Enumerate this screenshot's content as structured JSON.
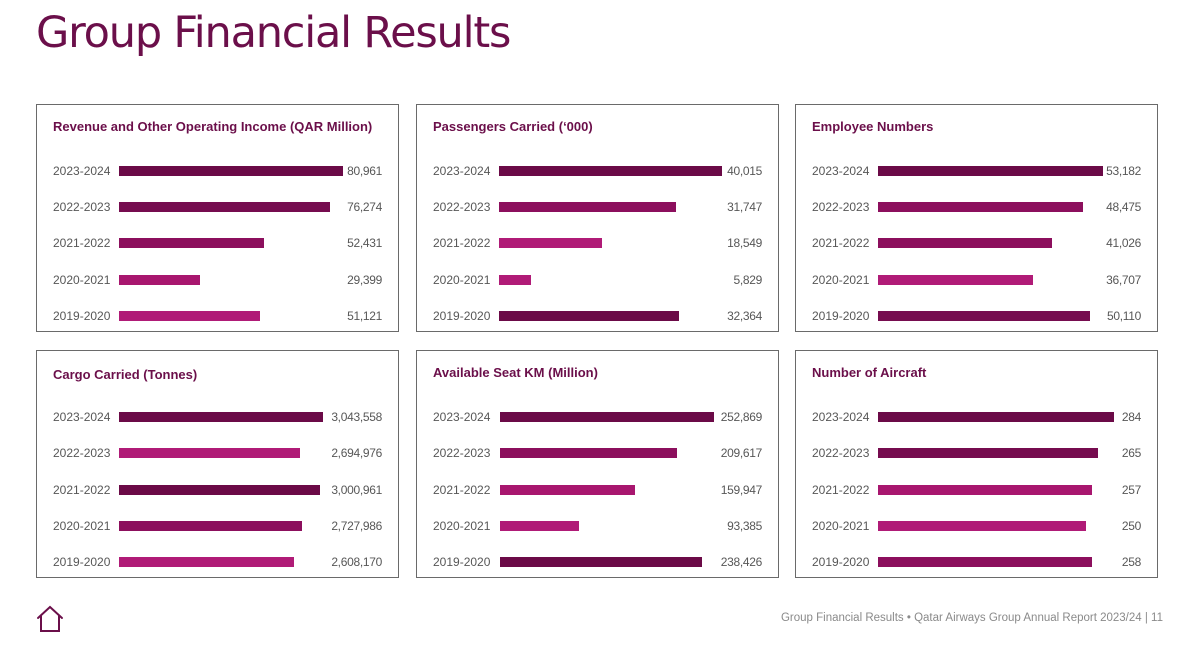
{
  "page_title": "Group Financial Results",
  "footer": {
    "text": "Group Financial Results • Qatar Airways Group Annual Report 2023/24 | 11"
  },
  "colors": {
    "dark": "#6b0a47",
    "mid": "#8c0f5d",
    "light": "#b01b77",
    "title": "#6b0f4a",
    "border": "#6a6a6a"
  },
  "chart_data": [
    {
      "type": "bar",
      "title": "Revenue and Other Operating Income (QAR Million)",
      "categories": [
        "2023-2024",
        "2022-2023",
        "2021-2022",
        "2020-2021",
        "2019-2020"
      ],
      "values": [
        80961,
        76274,
        52431,
        29399,
        51121
      ],
      "value_labels": [
        "80,961",
        "76,274",
        "52,431",
        "29,399",
        "51,121"
      ],
      "bar_colors": [
        "#6b0a47",
        "#760c4f",
        "#8c0f5d",
        "#a8166f",
        "#b01b77"
      ]
    },
    {
      "type": "bar",
      "title": "Passengers Carried (‘000)",
      "categories": [
        "2023-2024",
        "2022-2023",
        "2021-2022",
        "2020-2021",
        "2019-2020"
      ],
      "values": [
        40015,
        31747,
        18549,
        5829,
        32364
      ],
      "value_labels": [
        "40,015",
        "31,747",
        "18,549",
        "5,829",
        "32,364"
      ],
      "bar_colors": [
        "#6b0a47",
        "#8c0f5d",
        "#b01b77",
        "#b01b77",
        "#6b0a47"
      ]
    },
    {
      "type": "bar",
      "title": "Employee Numbers",
      "categories": [
        "2023-2024",
        "2022-2023",
        "2021-2022",
        "2020-2021",
        "2019-2020"
      ],
      "values": [
        53182,
        48475,
        41026,
        36707,
        50110
      ],
      "value_labels": [
        "53,182",
        "48,475",
        "41,026",
        "36,707",
        "50,110"
      ],
      "bar_colors": [
        "#6b0a47",
        "#8c0f5d",
        "#8c0f5d",
        "#b01b77",
        "#760c4f"
      ]
    },
    {
      "type": "bar",
      "title": "Cargo Carried (Tonnes)",
      "categories": [
        "2023-2024",
        "2022-2023",
        "2021-2022",
        "2020-2021",
        "2019-2020"
      ],
      "values": [
        3043558,
        2694976,
        3000961,
        2727986,
        2608170
      ],
      "value_labels": [
        "3,043,558",
        "2,694,976",
        "3,000,961",
        "2,727,986",
        "2,608,170"
      ],
      "bar_colors": [
        "#6b0a47",
        "#b01b77",
        "#6b0a47",
        "#8c0f5d",
        "#b01b77"
      ]
    },
    {
      "type": "bar",
      "title": "Available Seat KM (Million)",
      "categories": [
        "2023-2024",
        "2022-2023",
        "2021-2022",
        "2020-2021",
        "2019-2020"
      ],
      "values": [
        252869,
        209617,
        159947,
        93385,
        238426
      ],
      "value_labels": [
        "252,869",
        "209,617",
        "159,947",
        "93,385",
        "238,426"
      ],
      "bar_colors": [
        "#6b0a47",
        "#8c0f5d",
        "#a8166f",
        "#b01b77",
        "#6b0a47"
      ]
    },
    {
      "type": "bar",
      "title": "Number of Aircraft",
      "categories": [
        "2023-2024",
        "2022-2023",
        "2021-2022",
        "2020-2021",
        "2019-2020"
      ],
      "values": [
        284,
        265,
        257,
        250,
        258
      ],
      "value_labels": [
        "284",
        "265",
        "257",
        "250",
        "258"
      ],
      "bar_colors": [
        "#6b0a47",
        "#760c4f",
        "#a8166f",
        "#b01b77",
        "#8c0f5d"
      ]
    }
  ]
}
